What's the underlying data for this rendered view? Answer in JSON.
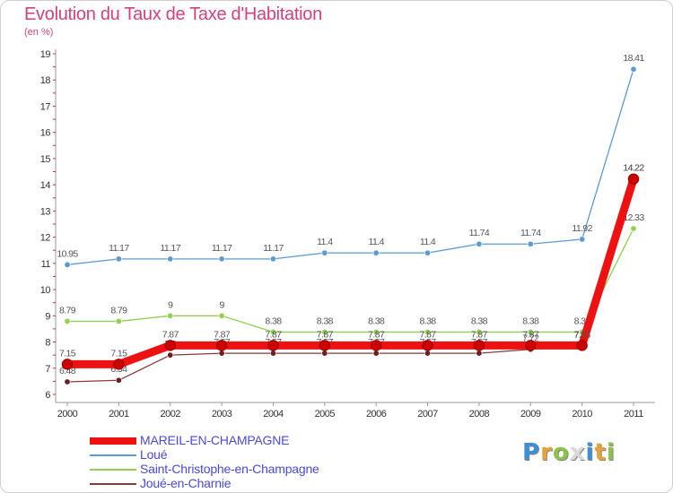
{
  "title": "Evolution du Taux de Taxe d'Habitation",
  "subtitle": "(en %)",
  "brand": {
    "text": "Proxiti",
    "letters": [
      {
        "ch": "P",
        "color": "#3d8fd6"
      },
      {
        "ch": "r",
        "color": "#e8a23a"
      },
      {
        "ch": "o",
        "color": "#8bc34a"
      },
      {
        "ch": "x",
        "color": "#d9d9d9"
      },
      {
        "ch": "i",
        "color": "#3d8fd6"
      },
      {
        "ch": "t",
        "color": "#e8a23a"
      },
      {
        "ch": "i",
        "color": "#8bc34a"
      }
    ]
  },
  "chart_data": {
    "type": "line",
    "title": "Evolution du Taux de Taxe d'Habitation",
    "ylabel": "(en %)",
    "xlabel": "",
    "x": [
      "2000",
      "2001",
      "2002",
      "2003",
      "2004",
      "2005",
      "2006",
      "2007",
      "2008",
      "2009",
      "2010",
      "2011"
    ],
    "ylim": [
      6,
      19
    ],
    "yticks": [
      6,
      7,
      8,
      9,
      10,
      11,
      12,
      13,
      14,
      15,
      16,
      17,
      18,
      19
    ],
    "grid": false,
    "legend": "bottom-left",
    "series": [
      {
        "name": "Loué",
        "color": "#5b9bd5",
        "width": 1.3,
        "marker_fill": "#5b9bd5",
        "values": [
          10.95,
          11.17,
          11.17,
          11.17,
          11.17,
          11.4,
          11.4,
          11.4,
          11.74,
          11.74,
          11.92,
          18.41
        ],
        "labels": [
          "10.95",
          "11.17",
          "11.17",
          "11.17",
          "11.17",
          "11.4",
          "11.4",
          "11.4",
          "11.74",
          "11.74",
          "11.92",
          "18.41"
        ],
        "label_color": "#555555"
      },
      {
        "name": "Saint-Christophe-en-Champagne",
        "color": "#92d050",
        "width": 1.3,
        "marker_fill": "#92d050",
        "values": [
          8.79,
          8.79,
          9,
          9,
          8.38,
          8.38,
          8.38,
          8.38,
          8.38,
          8.38,
          8.38,
          12.33
        ],
        "labels": [
          "8.79",
          "8.79",
          "9",
          "9",
          "8.38",
          "8.38",
          "8.38",
          "8.38",
          "8.38",
          "8.38",
          "8.38",
          "12.33"
        ],
        "label_color": "#555555"
      },
      {
        "name": "Joué-en-Charnie",
        "color": "#8b3a3a",
        "width": 1.3,
        "marker_fill": "#6b1f1f",
        "values": [
          6.48,
          6.54,
          7.5,
          7.57,
          7.57,
          7.57,
          7.57,
          7.57,
          7.57,
          7.72,
          7.85,
          14.22
        ],
        "labels": [
          "6.48",
          "6.54",
          "7.5",
          "7.57",
          "7.57",
          "7.57",
          "7.57",
          "7.57",
          "7.57",
          "7.72",
          "7.85",
          "14.22"
        ],
        "label_color": "#555555"
      },
      {
        "name": "MAREIL-EN-CHAMPAGNE",
        "color": "#ee1111",
        "width": 9,
        "marker_fill": "#cc0000",
        "values": [
          7.15,
          7.15,
          7.87,
          7.87,
          7.87,
          7.87,
          7.87,
          7.87,
          7.87,
          7.87,
          7.87,
          14.22
        ],
        "labels": [
          "7.15",
          "7.15",
          "7.87",
          "7.87",
          "7.87",
          "7.87",
          "7.87",
          "7.87",
          "7.87",
          "7.87",
          "7.87",
          "14.22"
        ],
        "label_color": "#555555"
      }
    ],
    "legend_entries": [
      "MAREIL-EN-CHAMPAGNE",
      "Loué",
      "Saint-Christophe-en-Champagne",
      "Joué-en-Charnie"
    ]
  }
}
